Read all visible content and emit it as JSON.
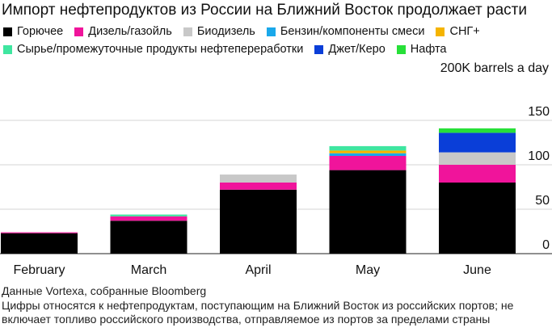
{
  "title": "Импорт нефтепродуктов из России на Ближний Восток продолжает расти",
  "unit_label": "200K barrels a day",
  "source": "Данные Vortexa, собранные Bloomberg",
  "note": "Цифры относятся к нефтепродуктам, поступающим на Ближний Восток из российских портов; не включает топливо российского производства, отправляемое из портов за пределами страны",
  "chart_data": {
    "type": "bar",
    "stacked": true,
    "categories": [
      "February",
      "March",
      "April",
      "May",
      "June"
    ],
    "ylim": [
      0,
      200
    ],
    "yticks": [
      0,
      50,
      100,
      150
    ],
    "grid": true,
    "legend_position": "top",
    "series": [
      {
        "name": "Горючее",
        "color": "#000000",
        "values": [
          23,
          37,
          72,
          94,
          80
        ]
      },
      {
        "name": "Дизель/газойль",
        "color": "#f0149b",
        "values": [
          1,
          5,
          8,
          16,
          20
        ]
      },
      {
        "name": "Биодизель",
        "color": "#c8c8c8",
        "values": [
          0,
          0,
          9,
          0,
          14
        ]
      },
      {
        "name": "Бензин/компоненты смеси",
        "color": "#1aa8ea",
        "values": [
          0,
          0,
          0,
          3,
          0
        ]
      },
      {
        "name": "СНГ+",
        "color": "#f5b400",
        "values": [
          0,
          0,
          0,
          3,
          0
        ]
      },
      {
        "name": "Сырье/промежуточные продукты нефтепереработки",
        "color": "#3fe6a0",
        "values": [
          0,
          2,
          0,
          5,
          0
        ]
      },
      {
        "name": "Джет/Керо",
        "color": "#0a3ed8",
        "values": [
          0,
          0,
          0,
          0,
          22
        ]
      },
      {
        "name": "Нафта",
        "color": "#27e038",
        "values": [
          0,
          0,
          0,
          0,
          5
        ]
      }
    ]
  }
}
